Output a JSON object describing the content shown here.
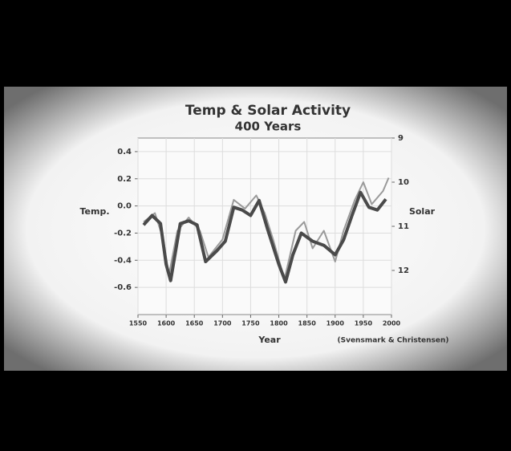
{
  "chart_data": {
    "type": "line",
    "title": "Temp & Solar Activity",
    "subtitle": "400 Years",
    "xlabel": "Year",
    "ylabel": "Temp.",
    "y2label": "Solar",
    "annotation": "(Svensmark & Christensen)",
    "xlim": [
      1550,
      2000
    ],
    "xticks": [
      1550,
      1600,
      1650,
      1700,
      1750,
      1800,
      1850,
      1900,
      1950,
      2000
    ],
    "ylim": [
      -0.8,
      0.5
    ],
    "yticks": [
      0.4,
      0.2,
      {
        "value": 0,
        "label": "0.0"
      },
      -0.2,
      -0.4,
      -0.6
    ],
    "y2lim": [
      13,
      9
    ],
    "y2ticks": [
      9,
      10,
      11,
      12
    ],
    "grid": true,
    "series": [
      {
        "color": "#4a4a4a",
        "x": [
          1560,
          1575,
          1590,
          1600,
          1608,
          1625,
          1640,
          1655,
          1670,
          1690,
          1705,
          1720,
          1735,
          1750,
          1765,
          1780,
          1800,
          1812,
          1825,
          1840,
          1860,
          1880,
          1900,
          1915,
          1930,
          1945,
          1960,
          1975,
          1990
        ],
        "values": [
          -0.14,
          -0.07,
          -0.13,
          -0.43,
          -0.55,
          -0.13,
          -0.11,
          -0.14,
          -0.41,
          -0.33,
          -0.26,
          -0.01,
          -0.03,
          -0.07,
          0.04,
          -0.17,
          -0.43,
          -0.56,
          -0.36,
          -0.2,
          -0.26,
          -0.29,
          -0.36,
          -0.25,
          -0.07,
          0.1,
          -0.01,
          -0.03,
          0.05
        ]
      },
      {
        "color": "#9a9a9a",
        "axis": "y2",
        "x": [
          1560,
          1580,
          1595,
          1605,
          1620,
          1640,
          1660,
          1675,
          1700,
          1720,
          1740,
          1760,
          1775,
          1790,
          1810,
          1830,
          1845,
          1860,
          1880,
          1900,
          1915,
          1935,
          1950,
          1965,
          1985,
          1995
        ],
        "values": [
          10.9,
          10.7,
          11.3,
          12.1,
          11.1,
          10.8,
          11.1,
          11.7,
          11.3,
          10.4,
          10.6,
          10.3,
          10.7,
          11.3,
          12.2,
          11.1,
          10.9,
          11.5,
          11.1,
          11.8,
          11.1,
          10.4,
          10.0,
          10.5,
          10.2,
          9.9
        ]
      }
    ]
  }
}
